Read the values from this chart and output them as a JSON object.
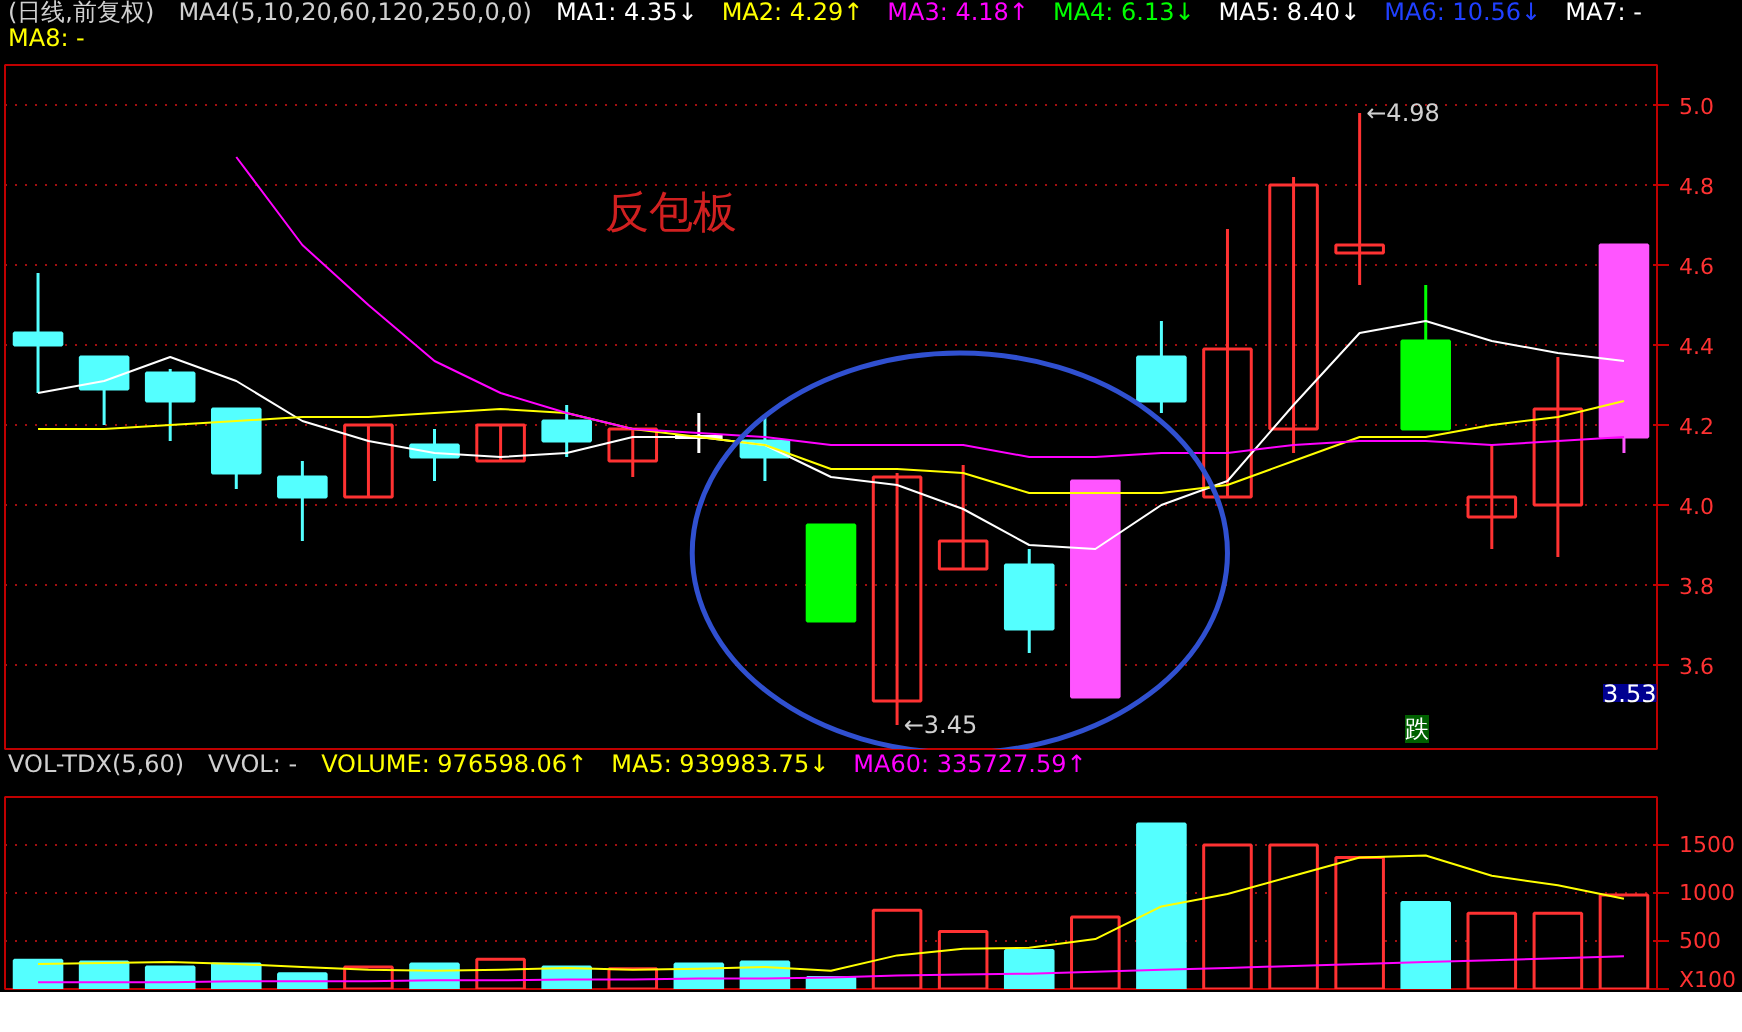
{
  "chart_data": [
    {
      "type": "candlestick",
      "title": "(日线,前复权)",
      "categories": [
        null,
        null,
        null,
        null,
        null,
        null,
        null,
        null,
        null,
        null,
        null,
        null,
        null,
        null,
        null,
        null,
        null,
        null,
        null,
        null,
        null,
        null,
        null,
        null,
        null
      ],
      "ohlc": [
        [
          4.43,
          4.58,
          4.28,
          4.4
        ],
        [
          4.37,
          4.37,
          4.2,
          4.29
        ],
        [
          4.33,
          4.34,
          4.16,
          4.26
        ],
        [
          4.24,
          4.24,
          4.04,
          4.08
        ],
        [
          4.07,
          4.11,
          3.91,
          4.02
        ],
        [
          4.02,
          4.2,
          4.02,
          4.2
        ],
        [
          4.15,
          4.19,
          4.06,
          4.12
        ],
        [
          4.11,
          4.2,
          4.11,
          4.2
        ],
        [
          4.21,
          4.25,
          4.12,
          4.16
        ],
        [
          4.11,
          4.19,
          4.07,
          4.19
        ],
        [
          4.17,
          4.23,
          4.13,
          4.17
        ],
        [
          4.16,
          4.22,
          4.06,
          4.12
        ],
        [
          3.95,
          3.95,
          3.71,
          3.71
        ],
        [
          3.51,
          4.08,
          3.45,
          4.07
        ],
        [
          3.84,
          4.1,
          3.84,
          3.91
        ],
        [
          3.85,
          3.89,
          3.63,
          3.69
        ],
        [
          3.52,
          4.06,
          3.52,
          4.06
        ],
        [
          4.37,
          4.46,
          4.23,
          4.26
        ],
        [
          4.02,
          4.69,
          4.02,
          4.39
        ],
        [
          4.19,
          4.82,
          4.13,
          4.8
        ],
        [
          4.63,
          4.98,
          4.55,
          4.65
        ],
        [
          4.41,
          4.55,
          4.19,
          4.19
        ],
        [
          3.97,
          4.15,
          3.89,
          4.02
        ],
        [
          4.0,
          4.37,
          3.87,
          4.24
        ],
        [
          4.17,
          4.65,
          4.13,
          4.65
        ]
      ],
      "colors": [
        "#54ffff",
        "#54ffff",
        "#54ffff",
        "#54ffff",
        "#54ffff",
        "#ff3232",
        "#54ffff",
        "#ff3232",
        "#54ffff",
        "#ff3232",
        "#ffffff",
        "#54ffff",
        "#00ff00",
        "#ff3232",
        "#ff3232",
        "#54ffff",
        "#ff55ff",
        "#54ffff",
        "#ff3232",
        "#ff3232",
        "#ff3232",
        "#00ff00",
        "#ff3232",
        "#ff3232",
        "#ff55ff"
      ],
      "series": [
        {
          "type": "line",
          "name": "MA1: 4.35↓",
          "color": "#ffffff",
          "values": [
            4.28,
            4.31,
            4.37,
            4.31,
            4.21,
            4.16,
            4.13,
            4.12,
            4.13,
            4.17,
            4.17,
            4.15,
            4.07,
            4.05,
            3.99,
            3.9,
            3.89,
            4.0,
            4.06,
            4.25,
            4.43,
            4.46,
            4.41,
            4.38,
            4.36
          ]
        },
        {
          "type": "line",
          "name": "MA2: 4.29↑",
          "color": "#ffff00",
          "values": [
            4.19,
            4.19,
            4.2,
            4.21,
            4.22,
            4.22,
            4.23,
            4.24,
            4.23,
            4.19,
            4.17,
            4.15,
            4.09,
            4.09,
            4.08,
            4.03,
            4.03,
            4.03,
            4.05,
            4.11,
            4.17,
            4.17,
            4.2,
            4.22,
            4.26
          ]
        },
        {
          "type": "line",
          "name": "MA3: 4.18↑",
          "color": "#ff00ff",
          "values": [
            null,
            null,
            null,
            4.87,
            4.65,
            4.5,
            4.36,
            4.28,
            4.23,
            4.19,
            4.18,
            4.17,
            4.15,
            4.15,
            4.15,
            4.12,
            4.12,
            4.13,
            4.13,
            4.15,
            4.16,
            4.16,
            4.15,
            4.16,
            4.17
          ]
        }
      ],
      "ylim": [
        3.39,
        5.1
      ],
      "yticks": [
        3.6,
        3.8,
        {
          "value": 4,
          "label": "4.0"
        },
        4.2,
        4.4,
        4.6,
        4.8,
        {
          "value": 5,
          "label": "5.0"
        }
      ],
      "grid": "y",
      "annotations": [
        "MA4(5,10,20,60,120,250,0,0)",
        "MA4: 6.13↓",
        "MA5: 8.40↓",
        "MA6: 10.56↓",
        "MA7: -",
        "MA8: -",
        "反包板",
        "跌",
        "←3.45",
        "←4.98",
        "3.53"
      ]
    },
    {
      "type": "bar",
      "categories": [
        null,
        null,
        null,
        null,
        null,
        null,
        null,
        null,
        null,
        null,
        null,
        null,
        null,
        null,
        null,
        null,
        null,
        null,
        null,
        null,
        null,
        null,
        null,
        null,
        null
      ],
      "series": [
        {
          "type": "bar",
          "color": "#ffff00",
          "colors": [
            "#54ffff",
            "#54ffff",
            "#54ffff",
            "#54ffff",
            "#54ffff",
            "#ff3232",
            "#54ffff",
            "#ff3232",
            "#54ffff",
            "#ff3232",
            "#54ffff",
            "#54ffff",
            "#54ffff",
            "#ff3232",
            "#ff3232",
            "#54ffff",
            "#ff3232",
            "#54ffff",
            "#ff3232",
            "#ff3232",
            "#ff3232",
            "#54ffff",
            "#ff3232",
            "#ff3232",
            "#ff3232"
          ],
          "values": [
            300,
            280,
            230,
            260,
            160,
            230,
            260,
            310,
            230,
            210,
            260,
            280,
            120,
            820,
            600,
            400,
            750,
            1720,
            1500,
            1500,
            1370,
            900,
            790,
            790,
            980
          ]
        },
        {
          "type": "line",
          "name": "MA5: 939983.75↓",
          "color": "#ffff00",
          "values": [
            260,
            270,
            280,
            260,
            230,
            200,
            190,
            200,
            220,
            200,
            210,
            230,
            190,
            350,
            420,
            430,
            520,
            860,
            990,
            1180,
            1370,
            1390,
            1180,
            1080,
            940
          ]
        },
        {
          "type": "line",
          "name": "MA60: 335727.59↑",
          "color": "#ff00ff",
          "values": [
            70,
            70,
            70,
            80,
            80,
            80,
            90,
            90,
            100,
            100,
            110,
            110,
            120,
            140,
            150,
            160,
            180,
            200,
            220,
            240,
            260,
            280,
            300,
            320,
            340
          ]
        }
      ],
      "ylim": [
        0,
        2000
      ],
      "yticks": [
        {
          "value": 0,
          "label": "X100"
        },
        500,
        1000,
        1500
      ],
      "grid": "y",
      "annotations": [
        "VOL-TDX(5,60)",
        "VVOL: -",
        "VOLUME: 976598.06↑"
      ]
    }
  ]
}
